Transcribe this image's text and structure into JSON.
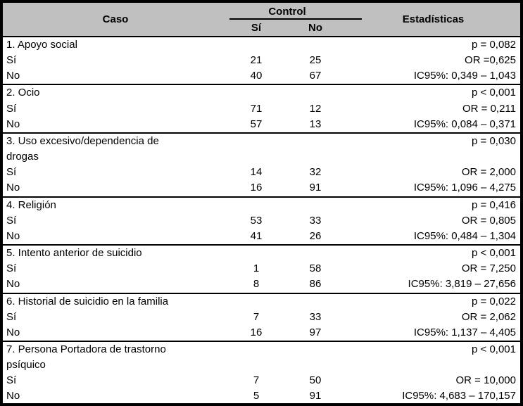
{
  "colors": {
    "header_bg": "#C0C0C0",
    "border": "#000000",
    "text": "#000000"
  },
  "header": {
    "caso": "Caso",
    "control": "Control",
    "si": "Sí",
    "no": "No",
    "estadisticas": "Estadísticas"
  },
  "sections": [
    {
      "rows": [
        {
          "caso": "1. Apoyo social",
          "si": "",
          "no": "",
          "est": "p = 0,082"
        },
        {
          "caso": "Sí",
          "si": "21",
          "no": "25",
          "est": "OR =0,625"
        },
        {
          "caso": "No",
          "si": "40",
          "no": "67",
          "est": "IC95%: 0,349 – 1,043"
        }
      ]
    },
    {
      "rows": [
        {
          "caso": "2. Ocio",
          "si": "",
          "no": "",
          "est": "p < 0,001"
        },
        {
          "caso": "Sí",
          "si": "71",
          "no": "12",
          "est": "OR = 0,211"
        },
        {
          "caso": "No",
          "si": "57",
          "no": "13",
          "est": "IC95%: 0,084 – 0,371"
        }
      ]
    },
    {
      "rows": [
        {
          "caso": "3. Uso excesivo/dependencia de",
          "si": "",
          "no": "",
          "est": "p = 0,030"
        },
        {
          "caso": "drogas",
          "si": "",
          "no": "",
          "est": ""
        },
        {
          "caso": "Sí",
          "si": "14",
          "no": "32",
          "est": "OR = 2,000"
        },
        {
          "caso": "No",
          "si": "16",
          "no": "91",
          "est": "IC95%: 1,096 – 4,275"
        }
      ]
    },
    {
      "rows": [
        {
          "caso": "4. Religión",
          "si": "",
          "no": "",
          "est": "p = 0,416"
        },
        {
          "caso": "Sí",
          "si": "53",
          "no": "33",
          "est": "OR = 0,805"
        },
        {
          "caso": "No",
          "si": "41",
          "no": "26",
          "est": "IC95%: 0,484 – 1,304"
        }
      ]
    },
    {
      "rows": [
        {
          "caso": "5. Intento anterior de suicidio",
          "si": "",
          "no": "",
          "est": "p < 0,001"
        },
        {
          "caso": "Sí",
          "si": "1",
          "no": "58",
          "est": "OR = 7,250"
        },
        {
          "caso": "No",
          "si": "8",
          "no": "86",
          "est": "IC95%: 3,819 – 27,656"
        }
      ]
    },
    {
      "rows": [
        {
          "caso": "6. Historial de suicidio en la familia",
          "si": "",
          "no": "",
          "est": "p = 0,022"
        },
        {
          "caso": "Sí",
          "si": "7",
          "no": "33",
          "est": "OR = 2,062"
        },
        {
          "caso": "No",
          "si": "16",
          "no": "97",
          "est": "IC95%: 1,137 – 4,405"
        }
      ]
    },
    {
      "rows": [
        {
          "caso": "7. Persona Portadora de trastorno",
          "si": "",
          "no": "",
          "est": "p < 0,001"
        },
        {
          "caso": "psíquico",
          "si": "",
          "no": "",
          "est": ""
        },
        {
          "caso": "Sí",
          "si": "7",
          "no": "50",
          "est": "OR = 10,000"
        },
        {
          "caso": "No",
          "si": "5",
          "no": "91",
          "est": "IC95%: 4,683 – 170,157"
        }
      ]
    }
  ]
}
